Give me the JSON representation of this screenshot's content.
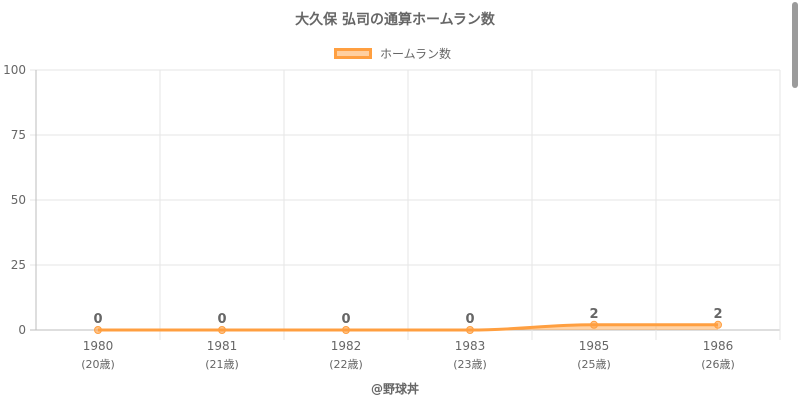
{
  "chart_data": {
    "type": "line",
    "title": "大久保 弘司の通算ホームラン数",
    "categories": [
      "1980",
      "1981",
      "1982",
      "1983",
      "1985",
      "1986"
    ],
    "age_labels": [
      "(20歳)",
      "(21歳)",
      "(22歳)",
      "(23歳)",
      "(25歳)",
      "(26歳)"
    ],
    "series": [
      {
        "name": "ホームラン数",
        "values": [
          0,
          0,
          0,
          0,
          2,
          2
        ],
        "color": "#ff9f40"
      }
    ],
    "ylim": [
      0,
      100
    ],
    "yticks": [
      "0",
      "25",
      "50",
      "75",
      "100"
    ],
    "grid": true,
    "legend": "top-center",
    "data_labels": true
  },
  "footer": "@野球丼"
}
